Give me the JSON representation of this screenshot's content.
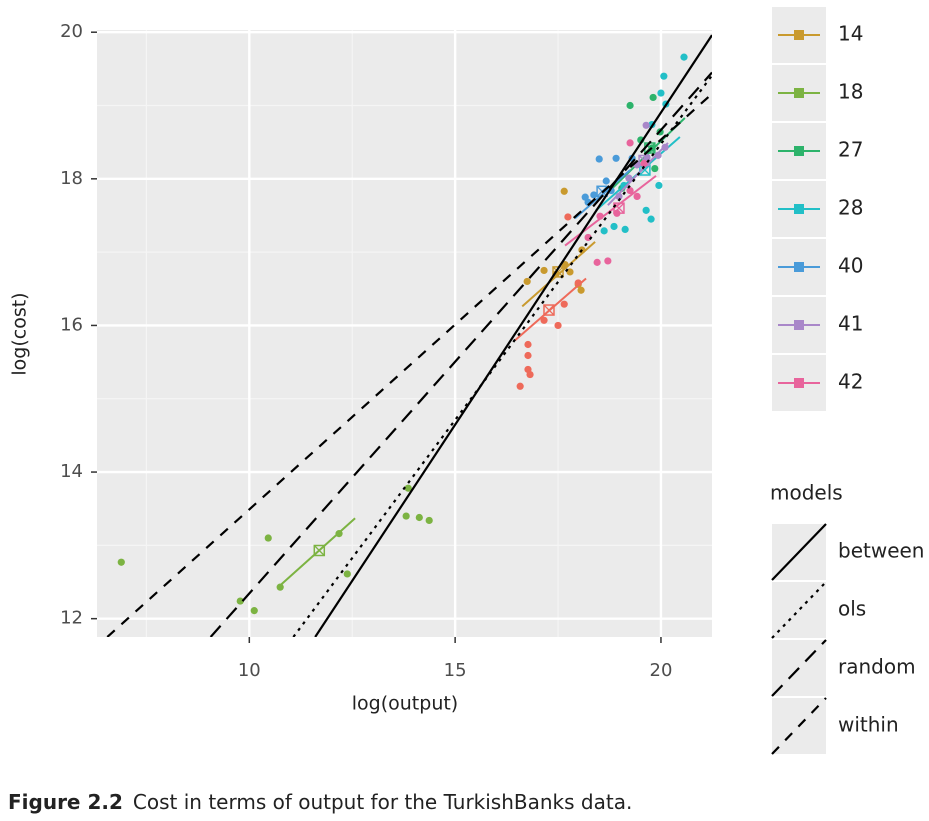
{
  "chart_data": {
    "type": "scatter",
    "x_label": "log(output)",
    "y_label": "log(cost)",
    "xlim": [
      6.3,
      21.24
    ],
    "ylim": [
      11.75,
      20.03
    ],
    "xticks": [
      10,
      15,
      20
    ],
    "yticks": [
      12,
      14,
      16,
      18,
      20
    ],
    "xminor": [
      7.5,
      12.5,
      17.5
    ],
    "yminor": [
      13,
      15,
      17,
      19
    ],
    "grid": true,
    "caption_label": "Figure 2.2",
    "caption": "Cost in terms of output for the TurkishBanks data.",
    "series": [
      {
        "name": "14",
        "color": "#c99a2e",
        "x": [
          16.75,
          17.16,
          17.45,
          17.67,
          17.79,
          17.99,
          18.06,
          18.08,
          17.65
        ],
        "y": [
          16.6,
          16.75,
          16.7,
          16.83,
          16.73,
          16.56,
          16.48,
          17.03,
          17.83
        ],
        "fit": {
          "x": [
            16.63,
            18.4
          ],
          "y": [
            16.26,
            17.14
          ]
        },
        "center": [
          17.5,
          16.73
        ]
      },
      {
        "name": "18",
        "color": "#7cb342",
        "x": [
          6.89,
          9.78,
          10.12,
          10.46,
          10.75,
          12.18,
          12.38,
          13.86,
          13.81,
          14.13,
          14.37
        ],
        "y": [
          12.77,
          12.24,
          12.11,
          13.1,
          12.43,
          13.16,
          12.61,
          13.78,
          13.4,
          13.38,
          13.34
        ],
        "fit": {
          "x": [
            10.78,
            12.57
          ],
          "y": [
            12.47,
            13.37
          ]
        },
        "center": [
          11.7,
          12.93
        ]
      },
      {
        "name": "27",
        "color": "#2db36b",
        "x": [
          19.25,
          19.81,
          19.85,
          19.78,
          19.51,
          19.05,
          19.98
        ],
        "y": [
          19.0,
          19.11,
          18.14,
          18.42,
          18.53,
          17.87,
          18.64
        ],
        "fit": {
          "x": [
            18.76,
            20.58
          ],
          "y": [
            17.84,
            18.83
          ]
        },
        "center": [
          19.73,
          18.42
        ]
      },
      {
        "name": "28",
        "color": "#22bfc7",
        "x": [
          20.56,
          20.07,
          20.0,
          20.12,
          19.78,
          19.95,
          19.64,
          19.76,
          19.13,
          18.86,
          18.62,
          19.1
        ],
        "y": [
          19.66,
          19.4,
          19.17,
          19.02,
          18.74,
          17.91,
          17.57,
          17.45,
          17.31,
          17.35,
          17.29,
          17.91
        ],
        "fit": {
          "x": [
            18.42,
            20.46
          ],
          "y": [
            17.57,
            18.57
          ]
        },
        "center": [
          19.61,
          18.12
        ]
      },
      {
        "name": "40",
        "color": "#4a9bd9",
        "x": [
          18.5,
          18.91,
          18.67,
          18.23,
          18.16,
          18.37,
          18.79,
          19.3
        ],
        "y": [
          18.27,
          18.28,
          17.97,
          17.68,
          17.75,
          17.78,
          17.84,
          18.28
        ],
        "fit": {
          "x": [
            17.91,
            19.25
          ],
          "y": [
            17.46,
            18.12
          ]
        },
        "center": [
          18.57,
          17.83
        ]
      },
      {
        "name": "41",
        "color": "#a987c9",
        "x": [
          19.64,
          19.66,
          19.93,
          20.1,
          19.22,
          19.42,
          18.98
        ],
        "y": [
          18.73,
          18.29,
          18.32,
          18.43,
          18.01,
          18.19,
          17.76
        ],
        "fit": {
          "x": [
            18.71,
            20.17
          ],
          "y": [
            17.64,
            18.49
          ]
        },
        "center": [
          19.59,
          18.25
        ]
      },
      {
        "name": "42",
        "color": "#e8649c",
        "x": [
          18.45,
          18.71,
          18.52,
          18.93,
          19.25,
          19.42,
          19.25,
          19.59,
          18.23
        ],
        "y": [
          16.86,
          16.88,
          17.49,
          17.53,
          17.84,
          17.76,
          18.49,
          18.21,
          17.2
        ],
        "fit": {
          "x": [
            17.67,
            19.88
          ],
          "y": [
            17.09,
            18.04
          ]
        },
        "center": [
          18.98,
          17.6
        ]
      },
      {
        "name": null,
        "color": "#ee6a5a",
        "x": [
          16.58,
          16.77,
          16.77,
          16.82,
          16.77,
          17.16,
          17.5,
          17.65,
          17.99,
          17.74
        ],
        "y": [
          15.17,
          15.59,
          15.4,
          15.33,
          15.74,
          16.07,
          16.0,
          16.29,
          16.58,
          17.48
        ],
        "fit": {
          "x": [
            16.46,
            18.18
          ],
          "y": [
            15.8,
            16.64
          ]
        },
        "center": [
          17.28,
          16.21
        ]
      }
    ],
    "models_title": "models",
    "models": [
      {
        "name": "between",
        "dash": "none",
        "x": [
          11.6,
          21.24
        ],
        "y": [
          11.75,
          19.96
        ]
      },
      {
        "name": "ols",
        "dash": "3,5",
        "x": [
          11.07,
          21.24
        ],
        "y": [
          11.75,
          19.41
        ]
      },
      {
        "name": "random",
        "dash": "15,9",
        "x": [
          9.06,
          21.24
        ],
        "y": [
          11.75,
          19.45
        ]
      },
      {
        "name": "within",
        "dash": "10,9",
        "x": [
          6.55,
          21.24
        ],
        "y": [
          11.75,
          19.16
        ]
      }
    ]
  }
}
